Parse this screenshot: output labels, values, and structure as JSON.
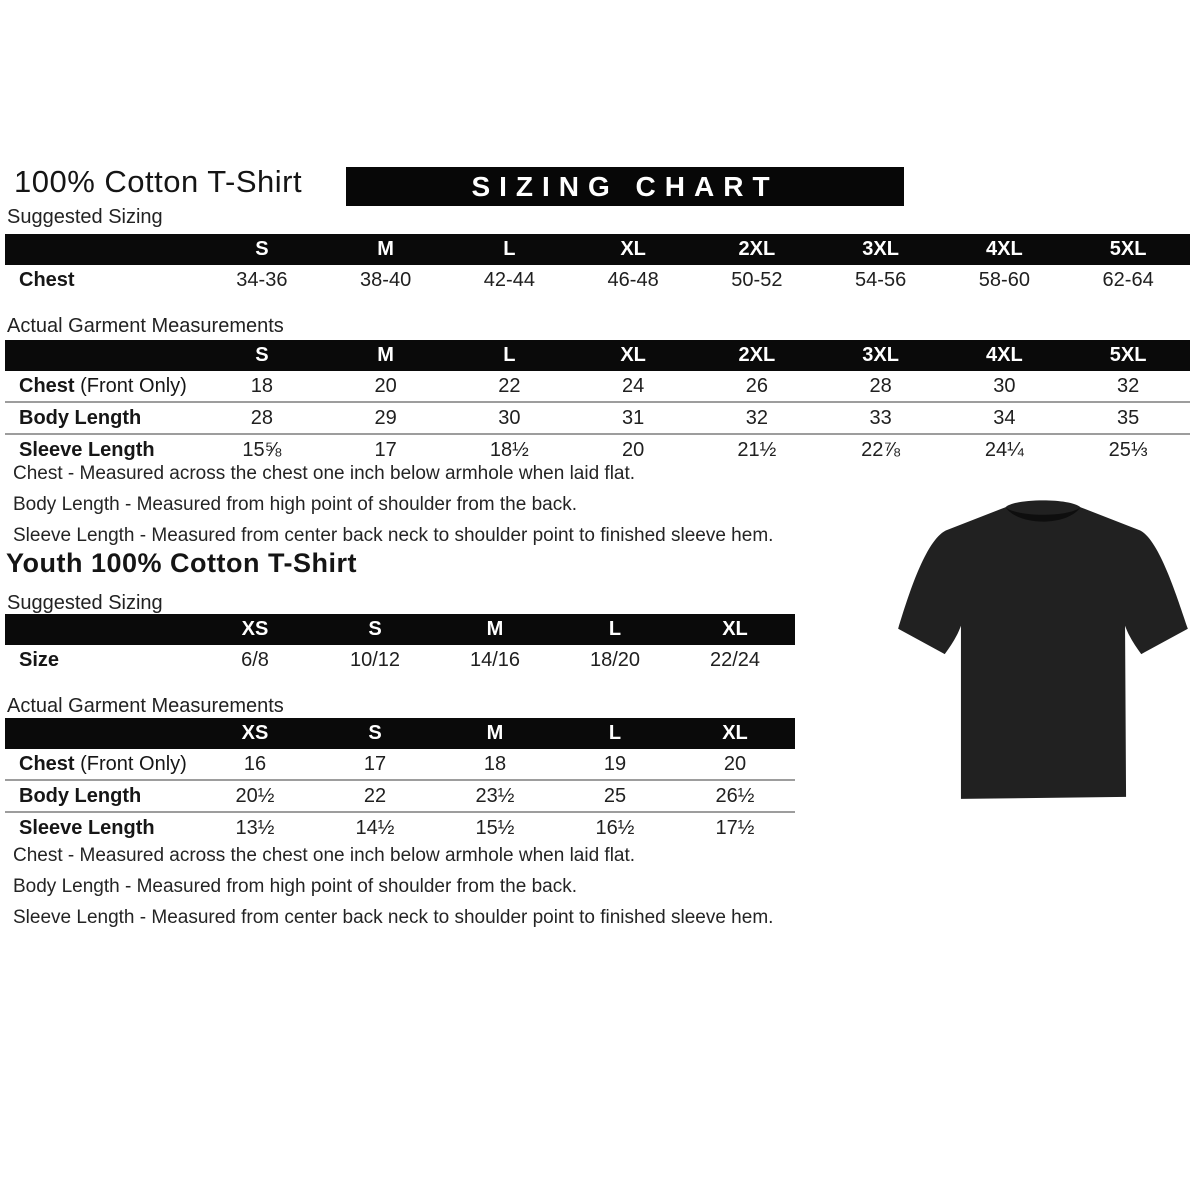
{
  "page": {
    "title": "100% Cotton T-Shirt",
    "banner": "SIZING CHART"
  },
  "adult": {
    "suggested_label": "Suggested Sizing",
    "suggested_table": {
      "columns": [
        "S",
        "M",
        "L",
        "XL",
        "2XL",
        "3XL",
        "4XL",
        "5XL"
      ],
      "rows": [
        {
          "label": "Chest",
          "suffix": "",
          "values": [
            "34-36",
            "38-40",
            "42-44",
            "46-48",
            "50-52",
            "54-56",
            "58-60",
            "62-64"
          ]
        }
      ]
    },
    "measurements_label": "Actual Garment Measurements",
    "measurements_table": {
      "columns": [
        "S",
        "M",
        "L",
        "XL",
        "2XL",
        "3XL",
        "4XL",
        "5XL"
      ],
      "rows": [
        {
          "label": "Chest",
          "suffix": " (Front Only)",
          "values": [
            "18",
            "20",
            "22",
            "24",
            "26",
            "28",
            "30",
            "32"
          ]
        },
        {
          "label": "Body Length",
          "suffix": "",
          "values": [
            "28",
            "29",
            "30",
            "31",
            "32",
            "33",
            "34",
            "35"
          ]
        },
        {
          "label": "Sleeve Length",
          "suffix": "",
          "values": [
            "15⅝",
            "17",
            "18½",
            "20",
            "21½",
            "22⅞",
            "24¼",
            "25⅓"
          ]
        }
      ]
    },
    "notes": [
      "Chest - Measured across the chest one inch below armhole when laid flat.",
      "Body Length - Measured from high point of shoulder from the back.",
      "Sleeve Length - Measured from center back neck to shoulder point to finished sleeve hem."
    ]
  },
  "youth": {
    "title": "Youth 100% Cotton T-Shirt",
    "suggested_label": "Suggested Sizing",
    "suggested_table": {
      "columns": [
        "XS",
        "S",
        "M",
        "L",
        "XL"
      ],
      "rows": [
        {
          "label": "Size",
          "suffix": "",
          "values": [
            "6/8",
            "10/12",
            "14/16",
            "18/20",
            "22/24"
          ]
        }
      ]
    },
    "measurements_label": "Actual Garment Measurements",
    "measurements_table": {
      "columns": [
        "XS",
        "S",
        "M",
        "L",
        "XL"
      ],
      "rows": [
        {
          "label": "Chest",
          "suffix": " (Front Only)",
          "values": [
            "16",
            "17",
            "18",
            "19",
            "20"
          ]
        },
        {
          "label": "Body Length",
          "suffix": "",
          "values": [
            "20½",
            "22",
            "23½",
            "25",
            "26½"
          ]
        },
        {
          "label": "Sleeve Length",
          "suffix": "",
          "values": [
            "13½",
            "14½",
            "15½",
            "16½",
            "17½"
          ]
        }
      ]
    },
    "notes": [
      "Chest - Measured across the chest one inch below armhole when laid flat.",
      "Body Length - Measured from high point of shoulder from the back.",
      "Sleeve Length - Measured from center back neck to shoulder point to finished sleeve hem."
    ]
  },
  "tshirt": {
    "alt": "black-tshirt",
    "color": "#212121",
    "neck_color": "#0e0e0e"
  }
}
